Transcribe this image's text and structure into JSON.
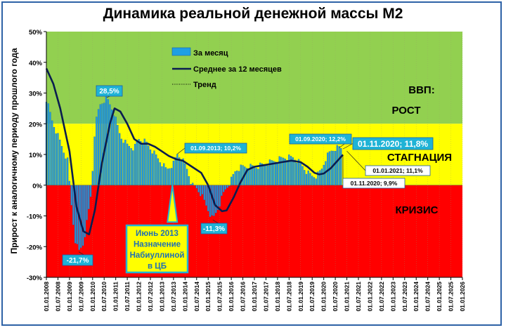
{
  "chart_data": {
    "type": "bar",
    "title": "Динамика реальной денежной массы М2",
    "ylabel": "Прирост к аналогичному периоду прошлого года",
    "ylim": [
      -30,
      50
    ],
    "y_ticks": [
      "50%",
      "40%",
      "30%",
      "20%",
      "10%",
      "0%",
      "-10%",
      "-20%",
      "-30%"
    ],
    "x_ticks": [
      "01.01.2008",
      "01.07.2008",
      "01.01.2009",
      "01.07.2009",
      "01.01.2010",
      "01.07.2010",
      "01.01.2011",
      "01.07.2011",
      "01.01.2012",
      "01.07.2012",
      "01.01.2013",
      "01.07.2013",
      "01.01.2014",
      "01.07.2014",
      "01.01.2015",
      "01.07.2015",
      "01.01.2016",
      "01.07.2016",
      "01.01.2017",
      "01.07.2017",
      "01.01.2018",
      "01.07.2018",
      "01.01.2019",
      "01.07.2019",
      "01.01.2020",
      "01.07.2020",
      "01.01.2021",
      "01.07.2021",
      "01.01.2022",
      "01.07.2022",
      "01.01.2023",
      "01.07.2023",
      "01.01.2024",
      "01.07.2024",
      "01.01.2025",
      "01.07.2025",
      "01.01.2026"
    ],
    "zones": [
      {
        "label": "ВВП:",
        "from": 20,
        "to": 50,
        "color": "#92d050"
      },
      {
        "label": "РОСТ",
        "from": 20,
        "to": 50,
        "color": "#92d050"
      },
      {
        "label": "СТАГНАЦИЯ",
        "from": 0,
        "to": 20,
        "color": "#ffff00"
      },
      {
        "label": "КРИЗИС",
        "from": -30,
        "to": 0,
        "color": "#ff0000"
      }
    ],
    "legend": [
      "За месяц",
      "Среднее за 12 месяцев",
      "Тренд"
    ],
    "monthly_anchors": {
      "x_years": [
        2008.0,
        2008.25,
        2008.5,
        2008.75,
        2008.92,
        2009.1,
        2009.25,
        2009.4,
        2009.6,
        2009.8,
        2009.95,
        2010.1,
        2010.3,
        2010.6,
        2010.9,
        2011.2,
        2011.5,
        2011.8,
        2012.0,
        2012.3,
        2012.6,
        2012.9,
        2013.2,
        2013.5,
        2013.67,
        2013.9,
        2014.1,
        2014.3,
        2014.5,
        2014.7,
        2015.0,
        2015.2,
        2015.45,
        2015.7,
        2015.95,
        2016.2,
        2016.5,
        2016.8,
        2017.1,
        2017.5,
        2017.9,
        2018.3,
        2018.7,
        2019.0,
        2019.3,
        2019.5,
        2019.7,
        2019.9,
        2020.1,
        2020.3,
        2020.5,
        2020.67,
        2020.83
      ],
      "y_values": [
        28,
        21,
        16,
        11,
        8,
        -8,
        -18,
        -21.7,
        -19,
        -10,
        -2,
        19,
        26,
        28.5,
        24,
        16,
        13,
        12,
        15,
        14,
        11,
        8,
        5,
        7,
        10.2,
        8,
        5,
        0,
        -1,
        -3,
        -8,
        -11.3,
        -7,
        -2,
        1,
        5,
        6,
        6,
        6,
        7,
        8,
        9,
        9,
        7,
        4,
        3,
        3,
        5,
        9,
        11,
        12,
        12.2,
        11.8
      ]
    },
    "avg_series": {
      "name": "Среднее за 12 месяцев",
      "x_years": [
        2008.0,
        2008.3,
        2008.6,
        2009.0,
        2009.3,
        2009.6,
        2009.85,
        2010.1,
        2010.4,
        2010.75,
        2010.95,
        2011.2,
        2011.5,
        2011.8,
        2012.1,
        2012.4,
        2012.7,
        2013.0,
        2013.3,
        2013.6,
        2013.9,
        2014.3,
        2014.7,
        2015.0,
        2015.3,
        2015.6,
        2015.8,
        2016.1,
        2016.4,
        2016.7,
        2017.0,
        2017.4,
        2017.8,
        2018.2,
        2018.6,
        2019.0,
        2019.3,
        2019.6,
        2019.8,
        2020.0,
        2020.3,
        2020.6,
        2020.83
      ],
      "y_values": [
        38,
        33,
        25,
        11,
        -7,
        -15,
        -16,
        -8,
        7,
        20,
        25,
        24,
        20,
        15,
        13.5,
        13.5,
        12.5,
        11,
        9.5,
        8.5,
        8,
        6,
        4,
        0,
        -6.5,
        -8.5,
        -8.2,
        -4,
        1,
        5,
        6,
        6.5,
        7,
        7.5,
        8,
        7.5,
        6,
        4,
        3.5,
        3.8,
        5.5,
        8,
        9.9
      ]
    },
    "annotations": [
      {
        "text": "28,5%",
        "x": 2010.6,
        "y": 28.5,
        "style": "cyan"
      },
      {
        "text": "-21,7%",
        "x": 2009.4,
        "y": -21.7,
        "style": "cyan"
      },
      {
        "text": "01.09.2013; 10,2%",
        "x": 2013.67,
        "y": 10.2,
        "style": "cyan"
      },
      {
        "text": "-11,3%",
        "x": 2015.2,
        "y": -11.3,
        "style": "cyan"
      },
      {
        "text": "01.09.2020; 12,2%",
        "x": 2020.67,
        "y": 12.2,
        "style": "cyan"
      },
      {
        "text": "01.11.2020; 11,8%",
        "x": 2020.83,
        "y": 11.8,
        "style": "cyan-big"
      },
      {
        "text": "01.01.2021; 11,1%",
        "x": 2021.0,
        "y": 11.1,
        "style": "white"
      },
      {
        "text": "01.11.2020; 9,9%",
        "x": 2020.83,
        "y": 9.9,
        "style": "white"
      }
    ],
    "callout": [
      "Июнь 2013",
      "Назначение",
      "Набиуллиной",
      "в ЦБ"
    ],
    "colors": {
      "bars": "#1f9fe3",
      "bar_edge": "#1b5ea8",
      "avg_line": "#0a1d4f",
      "green": "#92d050",
      "yellow": "#ffff00",
      "red": "#ff0000"
    }
  }
}
